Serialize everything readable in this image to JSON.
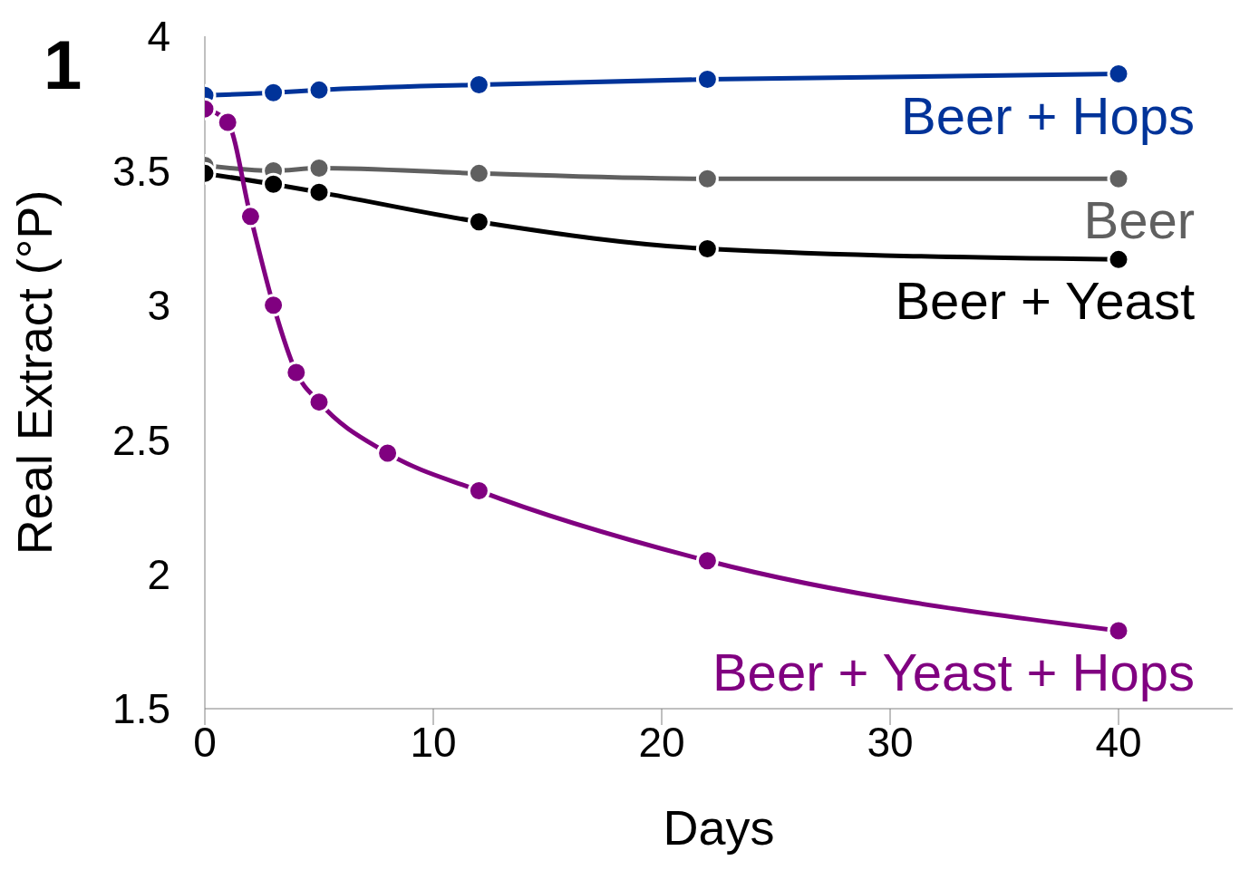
{
  "chart_data": {
    "type": "line",
    "xlabel": "Days",
    "ylabel": "Real Extract (°P)",
    "annotations": [
      "1"
    ],
    "xlim": [
      0,
      45
    ],
    "xticks": [
      0,
      10,
      20,
      30,
      40
    ],
    "ylim": [
      1.5,
      4
    ],
    "yticks": [
      1.5,
      2,
      2.5,
      3,
      3.5,
      4
    ],
    "grid": false,
    "marker": "circle",
    "line_style": "solid",
    "series": [
      {
        "name": "Beer + Hops",
        "color": "#003399",
        "x": [
          0,
          3,
          5,
          12,
          22,
          40
        ],
        "values": [
          3.78,
          3.79,
          3.8,
          3.82,
          3.84,
          3.86
        ]
      },
      {
        "name": "Beer",
        "color": "#606060",
        "x": [
          0,
          3,
          5,
          12,
          22,
          40
        ],
        "values": [
          3.52,
          3.5,
          3.51,
          3.49,
          3.47,
          3.47
        ]
      },
      {
        "name": "Beer + Yeast",
        "color": "#000000",
        "x": [
          0,
          3,
          5,
          12,
          22,
          40
        ],
        "values": [
          3.49,
          3.45,
          3.42,
          3.31,
          3.21,
          3.17
        ]
      },
      {
        "name": "Beer + Yeast +  Hops",
        "color": "#800080",
        "x": [
          0,
          1,
          2,
          3,
          4,
          5,
          8,
          12,
          22,
          40
        ],
        "values": [
          3.73,
          3.68,
          3.33,
          3.0,
          2.75,
          2.64,
          2.45,
          2.31,
          2.05,
          1.79
        ]
      }
    ]
  }
}
